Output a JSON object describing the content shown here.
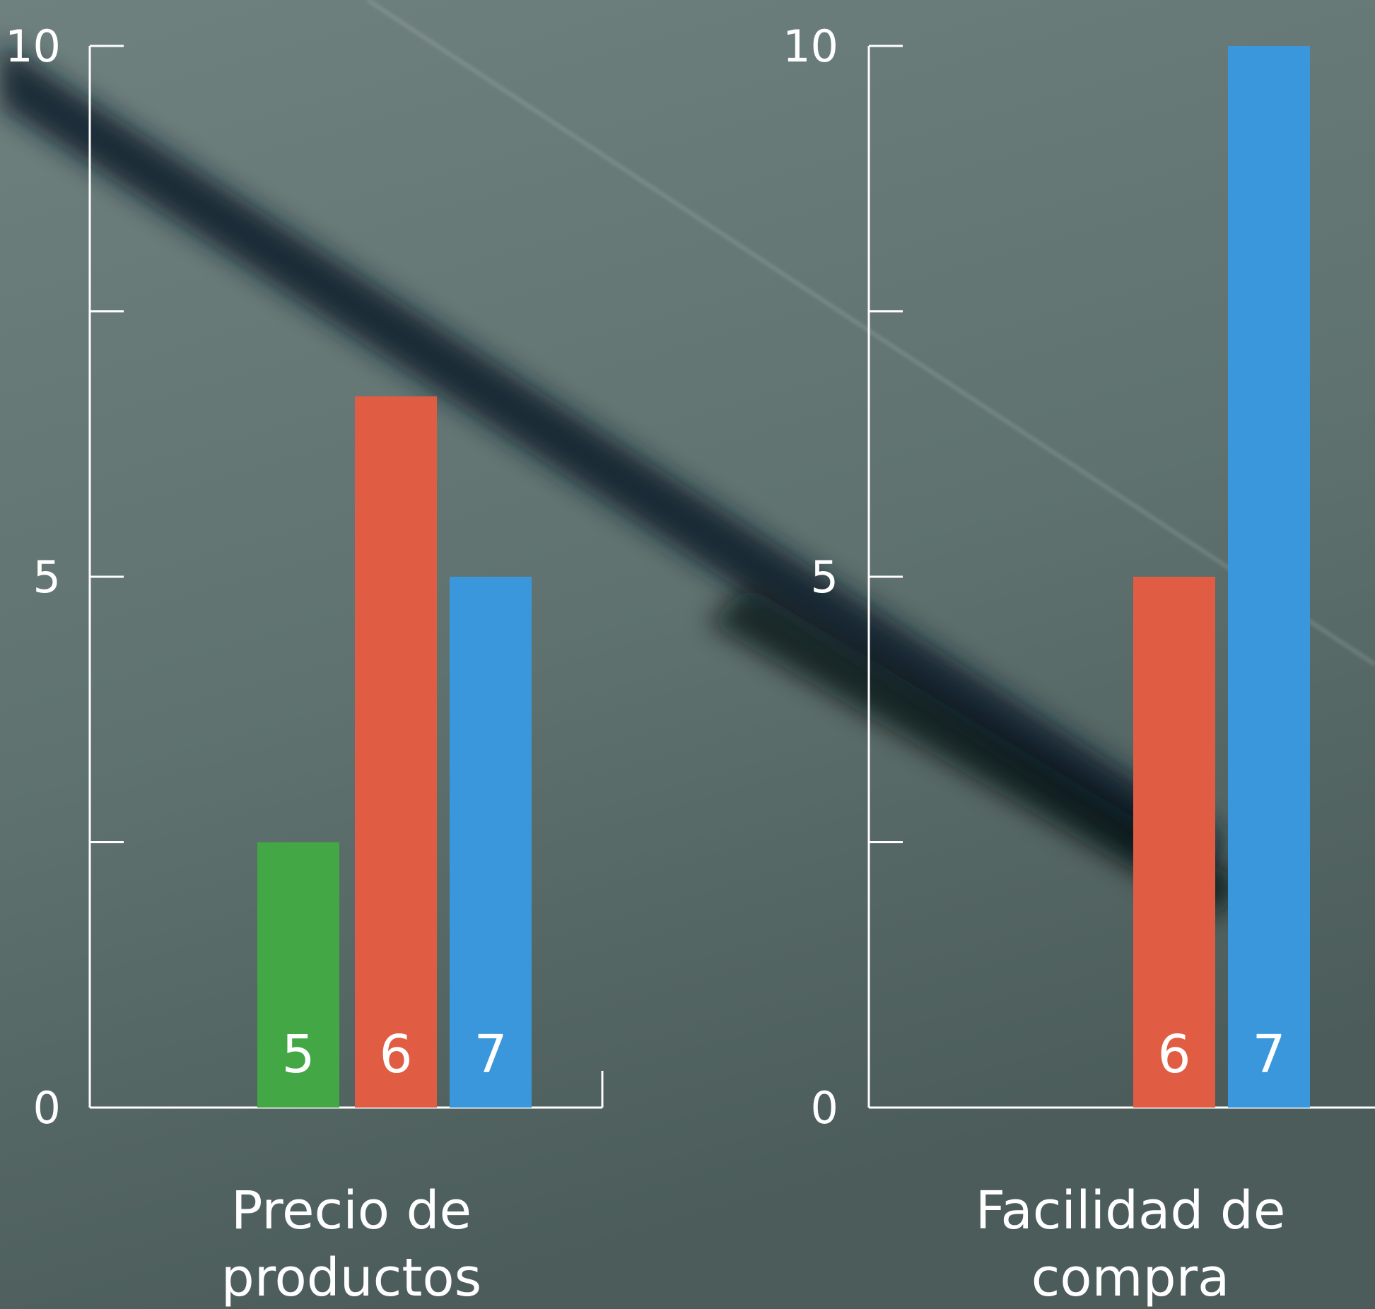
{
  "chart_data": [
    {
      "type": "bar",
      "ylim": [
        0,
        10
      ],
      "yticks": [
        0,
        5,
        10
      ],
      "ytick_labels": [
        "0",
        "5",
        "10"
      ],
      "minor_ticks": [
        2.5,
        7.5
      ],
      "category_label_lines": [
        "Precio de",
        "productos"
      ],
      "bars": [
        {
          "value": 2.5,
          "label": "5",
          "color": "#43a745"
        },
        {
          "value": 6.7,
          "label": "6",
          "color": "#e05d43"
        },
        {
          "value": 5.0,
          "label": "7",
          "color": "#3a97dc"
        }
      ]
    },
    {
      "type": "bar",
      "ylim": [
        0,
        10
      ],
      "yticks": [
        0,
        5,
        10
      ],
      "ytick_labels": [
        "0",
        "5",
        "10"
      ],
      "minor_ticks": [
        2.5,
        7.5
      ],
      "category_label_lines": [
        "Facilidad de",
        "compra"
      ],
      "bars": [
        {
          "value": 5.0,
          "label": "6",
          "color": "#e05d43"
        },
        {
          "value": 10.0,
          "label": "7",
          "color": "#3a97dc"
        }
      ]
    }
  ]
}
